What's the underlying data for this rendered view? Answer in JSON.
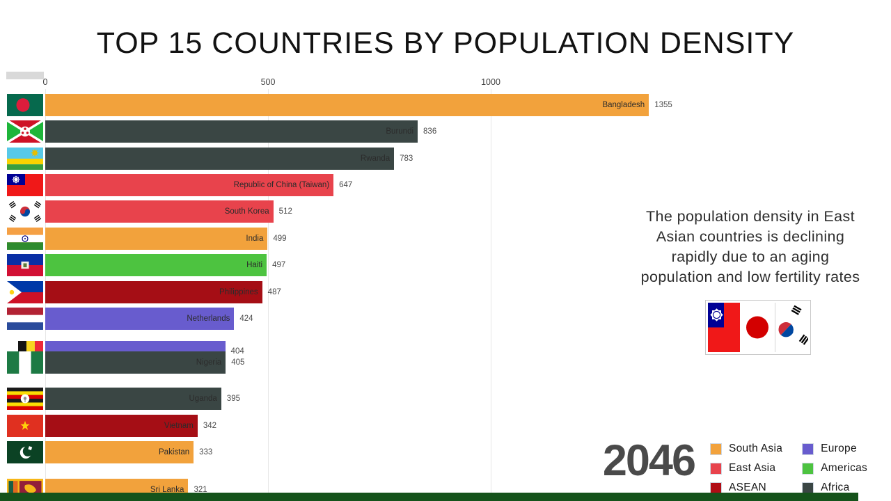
{
  "title": "TOP 15 COUNTRIES BY POPULATION DENSITY",
  "year_label": "2046",
  "annotation": {
    "lines": [
      "The population density in East",
      "Asian countries is declining",
      "rapidly due to an aging",
      "population and low fertility rates"
    ]
  },
  "highlight_flags": [
    {
      "icon": "taiwan-flag-icon",
      "flag": "taiwan-lg"
    },
    {
      "icon": "japan-flag-icon",
      "flag": "japan-lg"
    },
    {
      "icon": "south-korea-flag-icon",
      "flag": "korea-lg"
    }
  ],
  "legend": {
    "columns": [
      [
        {
          "label": "South Asia",
          "color": "#f2a23c"
        },
        {
          "label": "East Asia",
          "color": "#e8434c"
        },
        {
          "label": "ASEAN",
          "color": "#b00d15"
        }
      ],
      [
        {
          "label": "Europe",
          "color": "#685cce"
        },
        {
          "label": "Americas",
          "color": "#4dc340"
        },
        {
          "label": "Africa",
          "color": "#3a4644"
        }
      ]
    ]
  },
  "region_colors": {
    "South Asia": "#f2a23c",
    "East Asia": "#e8434c",
    "ASEAN": "#a50e15",
    "Europe": "#685cce",
    "Americas": "#4dc340",
    "Africa": "#3a4644"
  },
  "chart_data": {
    "type": "bar",
    "orientation": "horizontal",
    "title": "TOP 15 COUNTRIES BY POPULATION DENSITY",
    "x_ticks": [
      0,
      500,
      1000
    ],
    "x_range": [
      0,
      1400
    ],
    "grid": true,
    "bars": [
      {
        "country": "Bangladesh",
        "value": 1355,
        "region": "South Asia",
        "flag": "bangladesh"
      },
      {
        "country": "Burundi",
        "value": 836,
        "region": "Africa",
        "flag": "burundi"
      },
      {
        "country": "Rwanda",
        "value": 783,
        "region": "Africa",
        "flag": "rwanda"
      },
      {
        "country": "Republic of China (Taiwan)",
        "value": 647,
        "region": "East Asia",
        "flag": "taiwan"
      },
      {
        "country": "South Korea",
        "value": 512,
        "region": "East Asia",
        "flag": "south-korea"
      },
      {
        "country": "India",
        "value": 499,
        "region": "South Asia",
        "flag": "india"
      },
      {
        "country": "Haiti",
        "value": 497,
        "region": "Americas",
        "flag": "haiti"
      },
      {
        "country": "Philippines",
        "value": 487,
        "region": "ASEAN",
        "flag": "philippines"
      },
      {
        "country": "Netherlands",
        "value": 424,
        "region": "Europe",
        "flag": "netherlands"
      },
      {
        "country": "Belgium",
        "value": 404,
        "region": "Europe",
        "flag": "belgium",
        "label_hidden": true
      },
      {
        "country": "Nigeria",
        "value": 405,
        "region": "Africa",
        "flag": "nigeria"
      },
      {
        "country": "Uganda",
        "value": 395,
        "region": "Africa",
        "flag": "uganda"
      },
      {
        "country": "Vietnam",
        "value": 342,
        "region": "ASEAN",
        "flag": "vietnam"
      },
      {
        "country": "Pakistan",
        "value": 333,
        "region": "South Asia",
        "flag": "pakistan"
      },
      {
        "country": "Sri Lanka",
        "value": 321,
        "region": "South Asia",
        "flag": "sri-lanka"
      }
    ]
  },
  "footer": {
    "progress_color": "#15531b"
  }
}
